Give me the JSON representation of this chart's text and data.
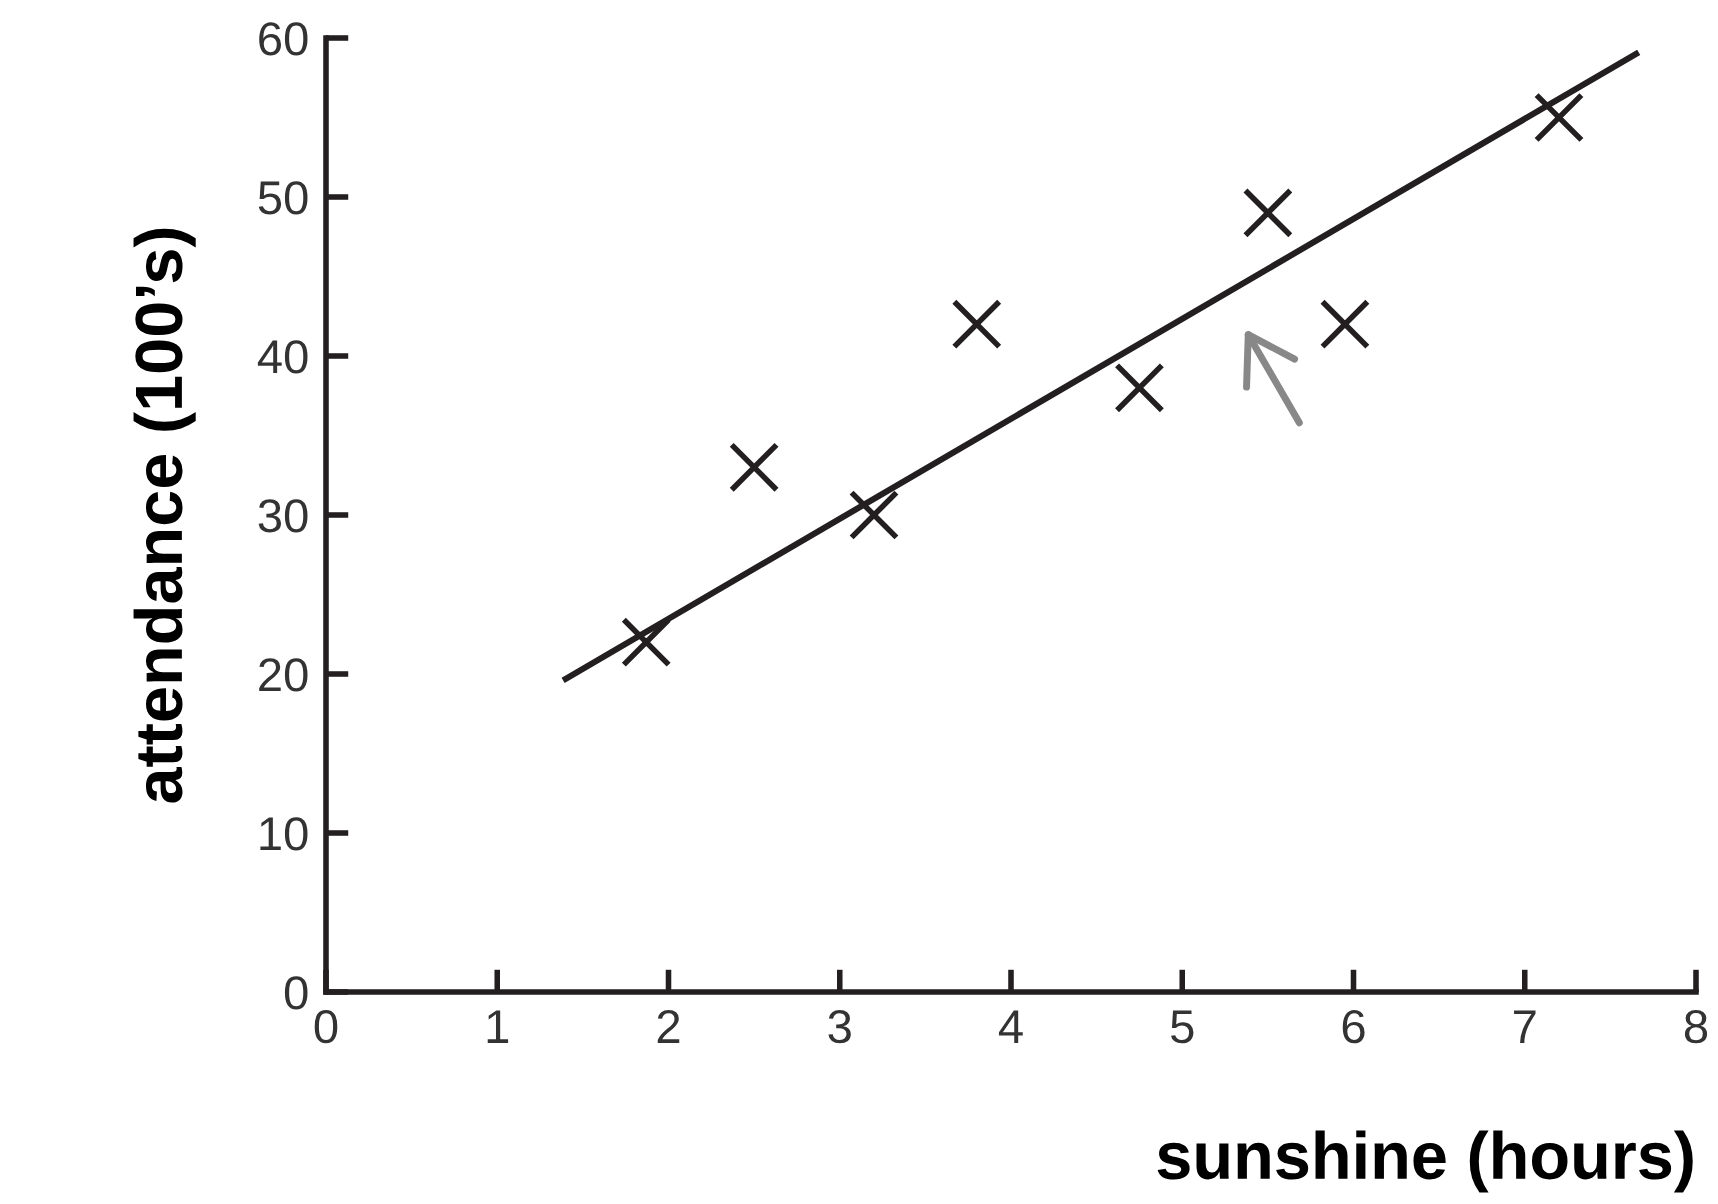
{
  "chart_data": {
    "type": "scatter",
    "xlabel": "sunshine (hours)",
    "ylabel": "attendance (100’s)",
    "xlim": [
      0,
      8
    ],
    "ylim": [
      0,
      60
    ],
    "xticks": [
      0,
      1,
      2,
      3,
      4,
      5,
      6,
      7,
      8
    ],
    "yticks": [
      0,
      10,
      20,
      30,
      40,
      50,
      60
    ],
    "grid": false,
    "series": [
      {
        "marker": "cross",
        "color": "#231f20",
        "x": [
          1.87,
          2.5,
          3.2,
          3.8,
          4.75,
          5.5,
          5.95,
          7.2
        ],
        "values": [
          22,
          33,
          30,
          42,
          38,
          49,
          42,
          55
        ]
      },
      {
        "type": "line",
        "color": "#231f20",
        "x": [
          1.4,
          7.65
        ],
        "values": [
          19.7,
          59
        ],
        "line_style": "solid",
        "marker": "none"
      }
    ]
  }
}
